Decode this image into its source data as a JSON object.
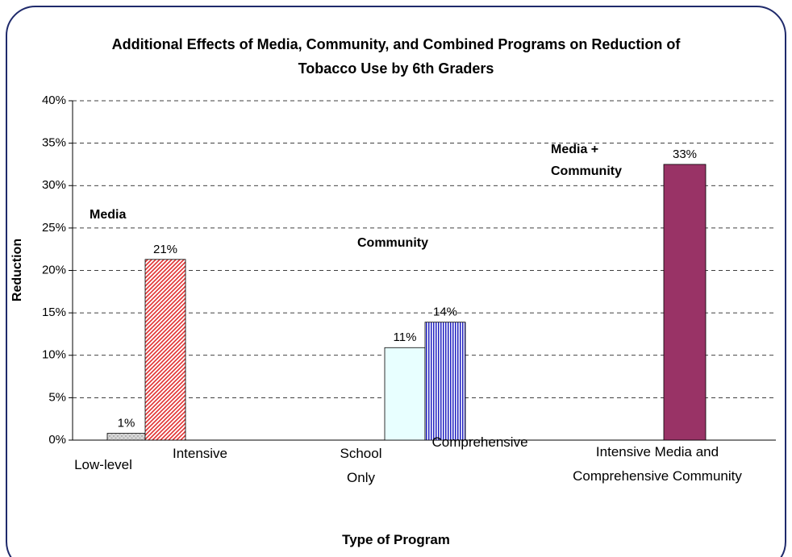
{
  "chart_data": {
    "type": "bar",
    "title": "Additional Effects of Media, Community,  and Combined Programs on Reduction of Tobacco Use by 6th Graders",
    "x_label": "Type of Program",
    "y_label": "Reduction",
    "categories": [
      "Low-level",
      "Intensive",
      "School Only",
      "Comprehensive",
      "Intensive Media and Comprehensive Community"
    ],
    "values": [
      0.8,
      21.3,
      10.9,
      13.9,
      32.5
    ],
    "value_labels": [
      "1%",
      "21%",
      "11%",
      "14%",
      "33%"
    ],
    "colors": [
      "#b0b0b0",
      "#e03030",
      "#e8ffff",
      "#2020c0",
      "#993366"
    ],
    "patterns": [
      "dots",
      "diagonal",
      "none",
      "vertical",
      "none"
    ],
    "annotations": [
      "Media",
      "Community",
      "Media + Community"
    ],
    "ylim": [
      0,
      40
    ],
    "yticks": [
      {
        "value": 0,
        "label": "0%"
      },
      {
        "value": 5,
        "label": "5%"
      },
      {
        "value": 10,
        "label": "10%"
      },
      {
        "value": 15,
        "label": "15%"
      },
      {
        "value": 20,
        "label": "20%"
      },
      {
        "value": 25,
        "label": "25%"
      },
      {
        "value": 30,
        "label": "30%"
      },
      {
        "value": 35,
        "label": "35%"
      },
      {
        "value": 40,
        "label": "40%"
      }
    ],
    "grid": true
  }
}
